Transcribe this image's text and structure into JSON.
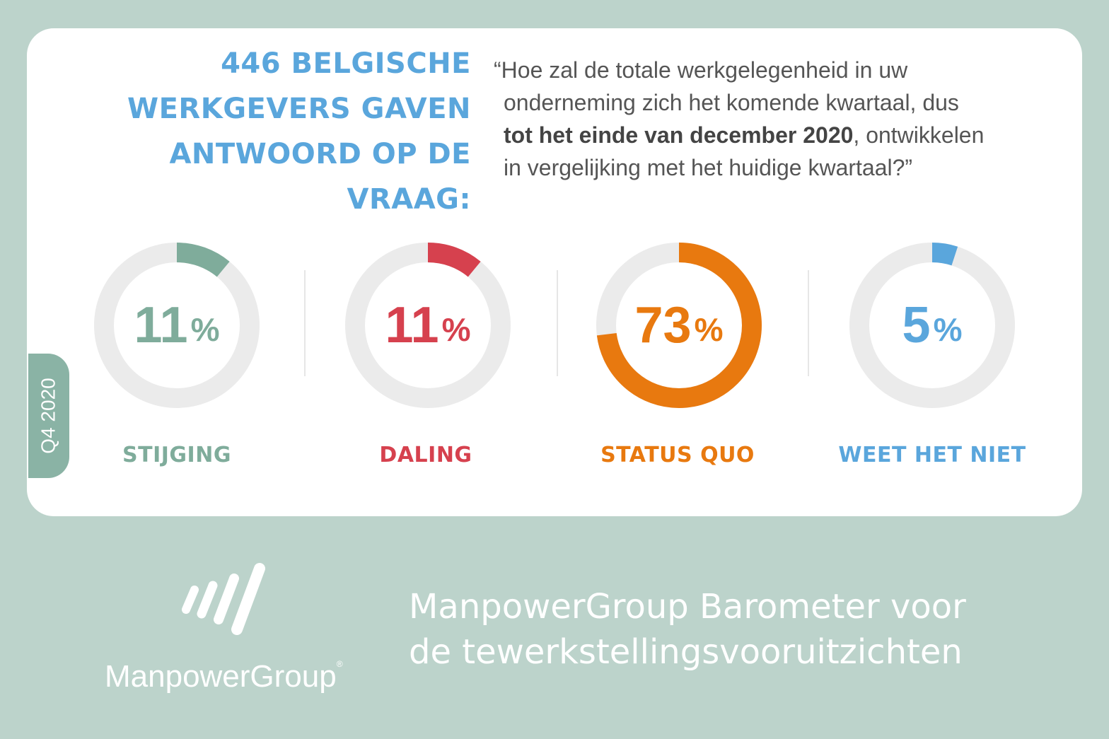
{
  "headline": {
    "lines": [
      "446 BELGISCHE",
      "WERKGEVERS GAVEN",
      "ANTWOORD OP DE VRAAG:"
    ]
  },
  "question": {
    "line1": "“Hoe zal de totale werkgelegenheid in uw",
    "line2": "onderneming zich het komende kwartaal, dus",
    "line3_bold": "tot het einde van december 2020",
    "line3_rest": ", ontwikkelen",
    "line4": "in vergelijking met het huidige kwartaal?”"
  },
  "quarter_tab": "Q4 2020",
  "chart_data": {
    "type": "pie",
    "variant": "donut",
    "title": "",
    "categories": [
      "STIJGING",
      "DALING",
      "STATUS QUO",
      "WEET HET NIET"
    ],
    "values": [
      11,
      11,
      73,
      5
    ],
    "unit": "%",
    "colors": [
      "#7fac9b",
      "#d6414e",
      "#e8790f",
      "#5aa6dc"
    ],
    "track_color": "#ebebeb"
  },
  "donuts": [
    {
      "value": "11",
      "pct": "%",
      "label": "STIJGING"
    },
    {
      "value": "11",
      "pct": "%",
      "label": "DALING"
    },
    {
      "value": "73",
      "pct": "%",
      "label": "STATUS QUO"
    },
    {
      "value": "5",
      "pct": "%",
      "label": "WEET HET NIET"
    }
  ],
  "logo": {
    "name": "ManpowerGroup",
    "mark_icon": "manpowergroup-stripes-icon"
  },
  "footer": {
    "line1": "ManpowerGroup Barometer voor",
    "line2": "de tewerkstellingsvooruitzichten"
  }
}
